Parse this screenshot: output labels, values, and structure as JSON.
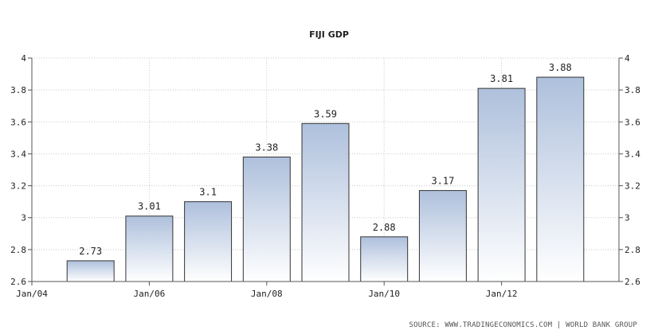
{
  "chart_data": {
    "type": "bar",
    "title": "FIJI GDP",
    "xlabel": "",
    "ylabel": "",
    "source": "SOURCE: WWW.TRADINGECONOMICS.COM | WORLD BANK GROUP",
    "ylim": [
      2.6,
      4.0
    ],
    "yticks": [
      "2.6",
      "2.8",
      "3",
      "3.2",
      "3.4",
      "3.6",
      "3.8",
      "4"
    ],
    "xticks": [
      "Jan/04",
      "Jan/06",
      "Jan/08",
      "Jan/10",
      "Jan/12"
    ],
    "categories": [
      "2005",
      "2006",
      "2007",
      "2008",
      "2009",
      "2010",
      "2011",
      "2012",
      "2013"
    ],
    "values": [
      2.73,
      3.01,
      3.1,
      3.38,
      3.59,
      2.88,
      3.17,
      3.81,
      3.88
    ],
    "value_labels": [
      "2.73",
      "3.01",
      "3.1",
      "3.38",
      "3.59",
      "2.88",
      "3.17",
      "3.81",
      "3.88"
    ],
    "grid": true,
    "legend": "none",
    "colors": {
      "bar_top": "#aec0dc",
      "bar_bottom": "#ffffff",
      "bar_stroke": "#333333",
      "grid": "#c8c8c8",
      "axis": "#555555"
    }
  }
}
